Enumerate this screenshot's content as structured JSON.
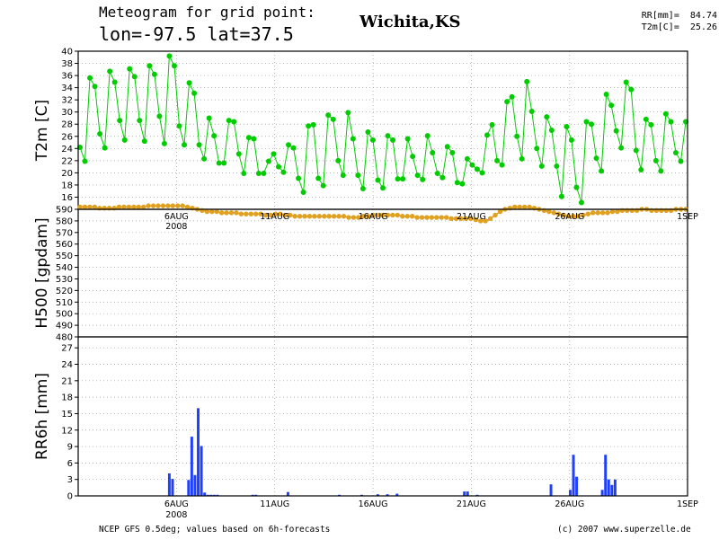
{
  "header": {
    "title": "Meteogram for grid point:",
    "coords": "lon=-97.5 lat=37.5",
    "city": "Wichita,KS",
    "rr_summary": "RR[mm]=  84.74",
    "t2m_summary": "T2m[C]=  25.26"
  },
  "footer": {
    "left": "NCEP GFS 0.5deg; values based on 6h-forecasts",
    "right": "(c) 2007 www.superzelle.de"
  },
  "colors": {
    "t2m": "#00cc00",
    "h500": "#e0a020",
    "rr": "#2040ff",
    "grid": "#999999"
  },
  "chart_data": [
    {
      "type": "line",
      "ylabel": "T2m [C]",
      "ylim": [
        14,
        40
      ],
      "yticks": [
        16,
        18,
        20,
        22,
        24,
        26,
        28,
        30,
        32,
        34,
        36,
        38,
        40
      ],
      "xlim": [
        0,
        124
      ],
      "xticks": [
        {
          "x": 20,
          "label": "6AUG",
          "sub": "2008"
        },
        {
          "x": 40,
          "label": "11AUG",
          "sub": ""
        },
        {
          "x": 60,
          "label": "16AUG",
          "sub": ""
        },
        {
          "x": 80,
          "label": "21AUG",
          "sub": ""
        },
        {
          "x": 100,
          "label": "26AUG",
          "sub": ""
        },
        {
          "x": 124,
          "label": "1SEP",
          "sub": ""
        }
      ],
      "series": [
        {
          "values": [
            24.2,
            21.9,
            35.6,
            34.2,
            26.4,
            24.1,
            36.7,
            34.9,
            28.6,
            25.4,
            37.1,
            35.8,
            28.6,
            25.2,
            37.6,
            36.2,
            29.3,
            24.8,
            39.2,
            37.6,
            27.7,
            24.6,
            34.8,
            33.1,
            24.6,
            22.3,
            29.0,
            26.1,
            21.6,
            21.6,
            28.6,
            28.4,
            23.1,
            19.9,
            25.8,
            25.6,
            19.9,
            19.9,
            21.9,
            23.1,
            21.0,
            20.1,
            24.6,
            24.1,
            19.1,
            16.8,
            27.7,
            27.9,
            19.1,
            17.9,
            29.5,
            28.8,
            22.0,
            19.6,
            29.9,
            25.6,
            19.6,
            17.4,
            26.7,
            25.4,
            18.8,
            17.5,
            26.1,
            25.4,
            19.0,
            19.0,
            25.6,
            22.7,
            19.6,
            18.9,
            26.1,
            23.3,
            19.9,
            19.2,
            24.3,
            23.3,
            18.4,
            18.2,
            22.3,
            21.3,
            20.6,
            20.0,
            26.2,
            27.9,
            22.0,
            21.3,
            31.7,
            32.5,
            26.0,
            22.3,
            35.0,
            30.1,
            24.0,
            21.1,
            29.2,
            27.0,
            21.1,
            16.1,
            27.6,
            25.4,
            17.6,
            15.1,
            28.4,
            28.0,
            22.4,
            20.3,
            32.9,
            31.1,
            26.9,
            24.1,
            34.9,
            33.7,
            23.7,
            20.5,
            28.8,
            27.9,
            22.0,
            20.3,
            29.7,
            28.4,
            23.3,
            21.9,
            28.4
          ]
        }
      ]
    },
    {
      "type": "line",
      "ylabel": "H500 [gpdam]",
      "ylim": [
        480,
        590
      ],
      "yticks": [
        480,
        490,
        500,
        510,
        520,
        530,
        540,
        550,
        560,
        570,
        580,
        590
      ],
      "series": [
        {
          "values": [
            592,
            592,
            592,
            592,
            591,
            591,
            591,
            591,
            592,
            592,
            592,
            592,
            592,
            592,
            593,
            593,
            593,
            593,
            593,
            593,
            593,
            593,
            592,
            591,
            590,
            589,
            588,
            588,
            588,
            587,
            587,
            587,
            587,
            586,
            586,
            586,
            586,
            586,
            585,
            585,
            586,
            586,
            585,
            585,
            584,
            584,
            584,
            584,
            584,
            584,
            584,
            584,
            584,
            584,
            584,
            583,
            583,
            583,
            584,
            584,
            585,
            585,
            585,
            585,
            585,
            585,
            584,
            584,
            584,
            583,
            583,
            583,
            583,
            583,
            583,
            583,
            582,
            582,
            582,
            582,
            582,
            581,
            580,
            580,
            582,
            585,
            588,
            590,
            591,
            592,
            592,
            592,
            592,
            591,
            590,
            589,
            588,
            587,
            586,
            585,
            584,
            584,
            584,
            585,
            586,
            587,
            587,
            587,
            587,
            588,
            588,
            589,
            589,
            589,
            589,
            590,
            590,
            589,
            589,
            589,
            589,
            589,
            590,
            590,
            590
          ]
        }
      ]
    },
    {
      "type": "bar",
      "ylabel": "RR6h [mm]",
      "ylim": [
        0,
        29
      ],
      "yticks": [
        0,
        3,
        6,
        9,
        12,
        15,
        18,
        21,
        24,
        27
      ],
      "series": [
        {
          "values": [
            0,
            0,
            0,
            0,
            0,
            0,
            0,
            0,
            0,
            0,
            0,
            0,
            0,
            0,
            0,
            0,
            0,
            0,
            0,
            0,
            0,
            0,
            0,
            0,
            0,
            0,
            0,
            0,
            4.1,
            3.1,
            0,
            0,
            0,
            0,
            2.9,
            10.8,
            3.8,
            16.0,
            9.1,
            0.6,
            0.2,
            0.2,
            0.2,
            0.2,
            0,
            0,
            0,
            0,
            0,
            0,
            0,
            0,
            0,
            0,
            0.2,
            0.2,
            0,
            0,
            0,
            0,
            0,
            0,
            0,
            0,
            0,
            0.7,
            0,
            0,
            0,
            0,
            0,
            0,
            0,
            0,
            0,
            0,
            0,
            0,
            0,
            0,
            0,
            0.2,
            0,
            0,
            0,
            0,
            0,
            0,
            0.2,
            0,
            0,
            0,
            0,
            0.3,
            0,
            0,
            0.3,
            0,
            0,
            0.4,
            0,
            0,
            0,
            0,
            0,
            0,
            0,
            0,
            0,
            0,
            0,
            0,
            0,
            0,
            0,
            0,
            0,
            0,
            0,
            0,
            0.8,
            0.8,
            0,
            0,
            0.2,
            0,
            0,
            0,
            0,
            0,
            0,
            0,
            0,
            0,
            0,
            0,
            0,
            0,
            0,
            0,
            0,
            0,
            0,
            0,
            0,
            0,
            0,
            2.1,
            0,
            0,
            0,
            0,
            0,
            1.1,
            7.5,
            3.5,
            0,
            0,
            0,
            0,
            0,
            0,
            0,
            1.1,
            7.5,
            3.0,
            2.0,
            3.0,
            0,
            0,
            0,
            0,
            0,
            0,
            0,
            0,
            0,
            0,
            0,
            0,
            0,
            0,
            0,
            0,
            0,
            0,
            0,
            0,
            0,
            0
          ]
        }
      ]
    }
  ]
}
